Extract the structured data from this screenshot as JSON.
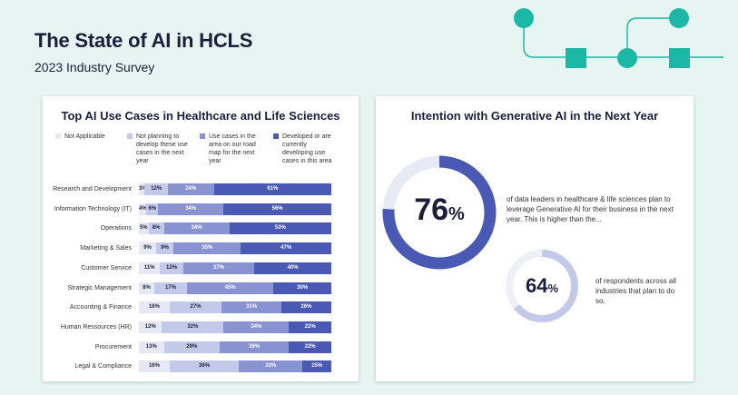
{
  "page": {
    "title": "The State of AI in HCLS",
    "subtitle": "2023 Industry Survey"
  },
  "colors": {
    "background": "#e6f5f1",
    "teal": "#1cb8a6",
    "not_applicable": "#e6e9f5",
    "not_planning": "#c3c9e8",
    "use_cases_roadmap": "#8a93d1",
    "developed": "#4a5ab4",
    "ring_large": "#4a5ab4",
    "ring_small": "#c3c9e8",
    "ring_track": "#e8ebf5"
  },
  "left_card": {
    "title": "Top AI Use Cases in Healthcare and Life Sciences"
  },
  "right_card": {
    "title": "Intention with Generative AI in the Next Year",
    "stat1": {
      "value": "76",
      "unit": "%",
      "fraction": 0.76,
      "text": "of data leaders in healthcare & life sciences plan to leverage Generative AI for their business in the next year. This is higher than the..."
    },
    "stat2": {
      "value": "64",
      "unit": "%",
      "fraction": 0.64,
      "text": "of respondents across all industries that plan to do so."
    }
  },
  "chart_data": {
    "type": "bar",
    "orientation": "horizontal",
    "stacked": true,
    "title": "Top AI Use Cases in Healthcare and Life Sciences",
    "legend_placement": "top",
    "categories": [
      "Research and Development",
      "Information Technology (IT)",
      "Operations",
      "Marketing & Sales",
      "Customer Service",
      "Strategic Management",
      "Accounting & Finance",
      "Human Ressources (HR)",
      "Procurement",
      "Legal & Compliance"
    ],
    "series": [
      {
        "name": "Not Applicable",
        "values": [
          3,
          4,
          5,
          9,
          11,
          8,
          16,
          12,
          13,
          16
        ],
        "label_color": "#1b1f3b"
      },
      {
        "name": "Not planning to develop these use cases in the next year",
        "values": [
          12,
          6,
          8,
          9,
          12,
          17,
          27,
          32,
          29,
          36
        ],
        "label_color": "#1b1f3b"
      },
      {
        "name": "Use cases in the area on our road map for the next year",
        "values": [
          24,
          34,
          34,
          35,
          37,
          45,
          31,
          34,
          36,
          33
        ],
        "label_color": "#ffffff"
      },
      {
        "name": "Developed or are currently developing use cases in this area",
        "values": [
          61,
          56,
          53,
          47,
          40,
          30,
          26,
          22,
          22,
          15
        ],
        "label_color": "#ffffff"
      }
    ],
    "value_suffix": "%"
  }
}
